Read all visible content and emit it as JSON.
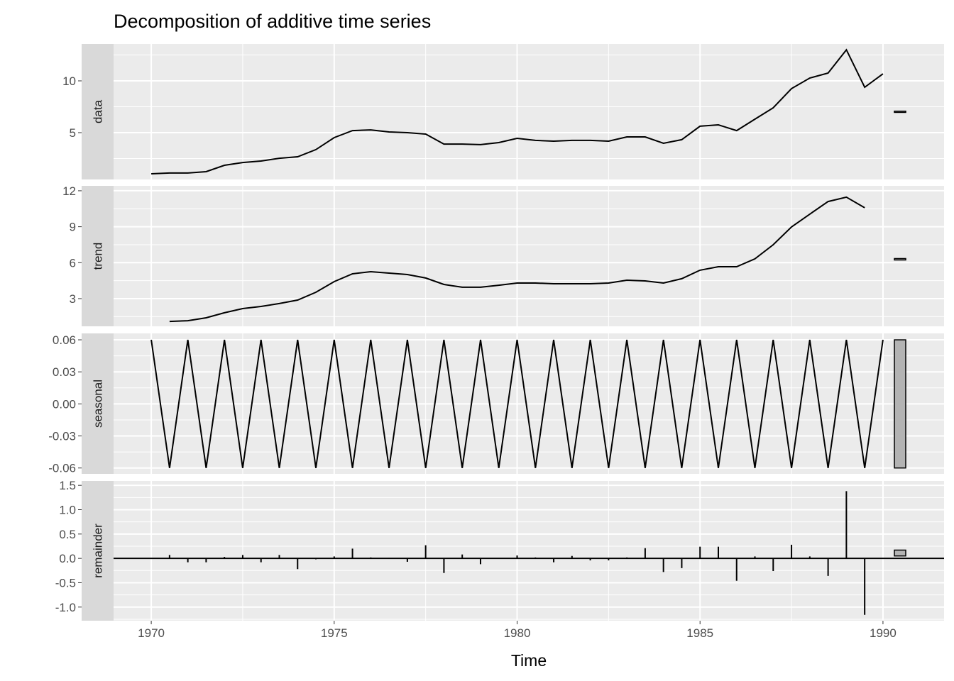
{
  "chart_data": {
    "type": "line",
    "title": "Decomposition of additive time series",
    "xlabel": "Time",
    "xlim": [
      1968.97,
      1991.67
    ],
    "x_ticks": [
      1970,
      1975,
      1980,
      1985,
      1990
    ],
    "x_tick_labels": [
      "1970",
      "1975",
      "1980",
      "1985",
      "1990"
    ],
    "grid": true,
    "colors": {
      "panel_bg": "#EBEBEB",
      "grid": "#FFFFFF",
      "strip_bg": "#D9D9D9",
      "line": "#000000",
      "range_bar": "#B3B3B3"
    },
    "x": [
      1970,
      1970.5,
      1971,
      1971.5,
      1972,
      1972.5,
      1973,
      1973.5,
      1974,
      1974.5,
      1975,
      1975.5,
      1976,
      1976.5,
      1977,
      1977.5,
      1978,
      1978.5,
      1979,
      1979.5,
      1980,
      1980.5,
      1981,
      1981.5,
      1982,
      1982.5,
      1983,
      1983.5,
      1984,
      1984.5,
      1985,
      1985.5,
      1986,
      1986.5,
      1987,
      1987.5,
      1988,
      1988.5,
      1989,
      1989.5,
      1990
    ],
    "panels": [
      {
        "name": "data",
        "style": "line",
        "ylim": [
          0.48,
          13.56
        ],
        "y_ticks": [
          5,
          10
        ],
        "y_tick_labels": [
          "5",
          "10"
        ],
        "values": [
          1.03,
          1.1,
          1.1,
          1.23,
          1.85,
          2.12,
          2.26,
          2.53,
          2.67,
          3.36,
          4.52,
          5.2,
          5.27,
          5.07,
          5.0,
          4.86,
          3.9,
          3.9,
          3.84,
          4.04,
          4.45,
          4.25,
          4.18,
          4.25,
          4.25,
          4.18,
          4.59,
          4.59,
          3.97,
          4.32,
          5.62,
          5.75,
          5.2,
          6.3,
          7.4,
          9.25,
          10.27,
          10.75,
          13.0,
          9.38,
          10.68
        ]
      },
      {
        "name": "trend",
        "style": "line",
        "ylim": [
          0.69,
          12.41
        ],
        "y_ticks": [
          3,
          6,
          9,
          12
        ],
        "y_tick_labels": [
          "3",
          "6",
          "9",
          "12"
        ],
        "values": [
          null,
          1.1,
          1.16,
          1.4,
          1.82,
          2.17,
          2.35,
          2.59,
          2.88,
          3.53,
          4.42,
          5.07,
          5.25,
          5.13,
          5.01,
          4.72,
          4.18,
          3.95,
          3.95,
          4.12,
          4.3,
          4.3,
          4.24,
          4.24,
          4.24,
          4.3,
          4.54,
          4.48,
          4.3,
          4.66,
          5.37,
          5.66,
          5.66,
          6.32,
          7.5,
          8.98,
          10.05,
          11.1,
          11.47,
          10.58,
          null
        ]
      },
      {
        "name": "seasonal",
        "style": "line",
        "ylim": [
          -0.0655,
          0.066
        ],
        "y_ticks": [
          -0.06,
          -0.03,
          0,
          0.03,
          0.06
        ],
        "y_tick_labels": [
          "-0.06",
          "-0.03",
          "0.00",
          "0.03",
          "0.06"
        ],
        "values": [
          0.06,
          -0.06,
          0.06,
          -0.06,
          0.06,
          -0.06,
          0.06,
          -0.06,
          0.06,
          -0.06,
          0.06,
          -0.06,
          0.06,
          -0.06,
          0.06,
          -0.06,
          0.06,
          -0.06,
          0.06,
          -0.06,
          0.06,
          -0.06,
          0.06,
          -0.06,
          0.06,
          -0.06,
          0.06,
          -0.06,
          0.06,
          -0.06,
          0.06,
          -0.06,
          0.06,
          -0.06,
          0.06,
          -0.06,
          0.06,
          -0.06,
          0.06,
          -0.06,
          0.06
        ]
      },
      {
        "name": "remainder",
        "style": "bars",
        "ylim": [
          -1.28,
          1.59
        ],
        "y_ticks": [
          -1.0,
          -0.5,
          0,
          0.5,
          1.0,
          1.5
        ],
        "y_tick_labels": [
          "-1.0",
          "-0.5",
          "0.0",
          "0.5",
          "1.0",
          "1.5"
        ],
        "values": [
          null,
          0.07,
          -0.08,
          -0.08,
          0.03,
          0.07,
          -0.08,
          0.07,
          -0.22,
          -0.02,
          0.04,
          0.2,
          0.02,
          0.01,
          -0.07,
          0.27,
          -0.3,
          0.08,
          -0.12,
          0.0,
          0.06,
          0.02,
          -0.08,
          0.05,
          -0.04,
          -0.04,
          0.02,
          0.21,
          -0.28,
          -0.2,
          0.24,
          0.24,
          -0.46,
          0.04,
          -0.26,
          0.28,
          0.04,
          -0.36,
          1.38,
          -1.16,
          null
        ]
      }
    ]
  }
}
